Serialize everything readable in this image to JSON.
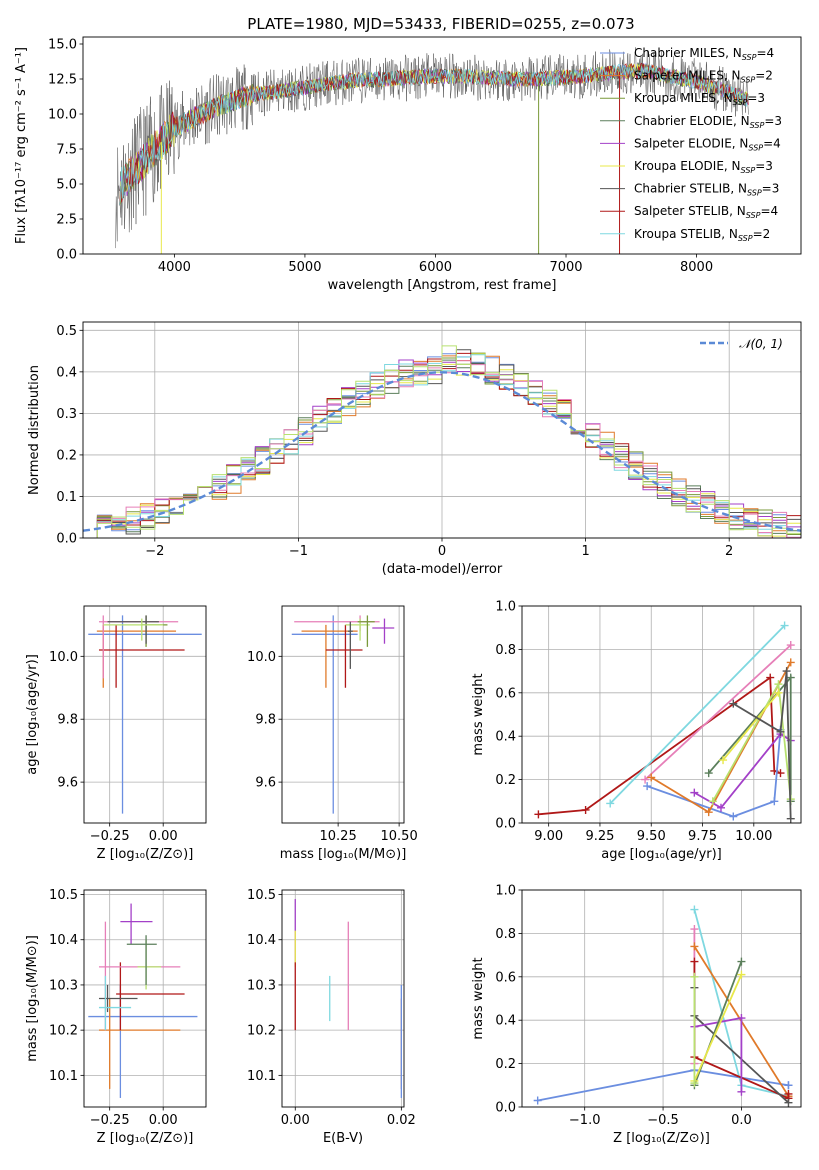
{
  "figure_title": "PLATE=1980, MJD=53433, FIBERID=0255, z=0.073",
  "colors": {
    "Chabrier MILES": "#6b8ee0",
    "Salpeter MILES": "#e07a2a",
    "Kroupa MILES": "#7a9a3a",
    "Chabrier ELODIE": "#5b7f5b",
    "Salpeter ELODIE": "#a340c8",
    "Kroupa ELODIE": "#e8e84a",
    "Chabrier STELIB": "#555555",
    "Salpeter STELIB": "#b01818",
    "Kroupa STELIB": "#7fd8e0",
    "pink": "#e67fb8",
    "lightgreen": "#b8e070"
  },
  "chart_data": [
    {
      "id": "spectrum",
      "type": "line",
      "xlabel": "wavelength [Angstrom, rest frame]",
      "ylabel": "Flux [fλ10⁻¹⁷ erg cm⁻² s⁻¹ A⁻¹]",
      "xlim": [
        3300,
        8800
      ],
      "ylim": [
        0,
        15.5
      ],
      "xticks": [
        "4000",
        "5000",
        "6000",
        "7000",
        "8000"
      ],
      "yticks": [
        "0.0",
        "2.5",
        "5.0",
        "7.5",
        "10.0",
        "12.5",
        "15.0"
      ],
      "legend": [
        {
          "label": "Chabrier MILES, N",
          "sub": "SSP",
          "suffix": "=4"
        },
        {
          "label": "Salpeter MILES, N",
          "sub": "SSP",
          "suffix": "=2"
        },
        {
          "label": "Kroupa MILES, N",
          "sub": "SSP",
          "suffix": "=3"
        },
        {
          "label": "Chabrier ELODIE, N",
          "sub": "SSP",
          "suffix": "=3"
        },
        {
          "label": "Salpeter ELODIE, N",
          "sub": "SSP",
          "suffix": "=4"
        },
        {
          "label": "Kroupa ELODIE, N",
          "sub": "SSP",
          "suffix": "=3"
        },
        {
          "label": "Chabrier STELIB, N",
          "sub": "SSP",
          "suffix": "=3"
        },
        {
          "label": "Salpeter STELIB, N",
          "sub": "SSP",
          "suffix": "=4"
        },
        {
          "label": "Kroupa STELIB, N",
          "sub": "SSP",
          "suffix": "=2"
        }
      ],
      "legend_placement": "right",
      "continuum": {
        "x": [
          3550,
          3700,
          3850,
          4000,
          4200,
          4400,
          4600,
          4800,
          5000,
          5200,
          5400,
          5600,
          5800,
          6000,
          6200,
          6400,
          6600,
          6800,
          7000,
          7200,
          7400,
          7600,
          7800,
          8000,
          8200,
          8400
        ],
        "y": [
          4.5,
          6.0,
          7.5,
          9.0,
          10.0,
          10.8,
          11.4,
          11.6,
          11.9,
          12.2,
          12.4,
          12.5,
          12.6,
          12.7,
          12.7,
          12.6,
          12.5,
          12.5,
          12.6,
          12.8,
          13.0,
          13.1,
          12.7,
          12.3,
          11.7,
          11.0
        ]
      },
      "dips": [
        {
          "x": 3900,
          "y": 0.0
        },
        {
          "x": 6790,
          "y": 0.0
        },
        {
          "x": 7410,
          "y": 0.0
        }
      ]
    },
    {
      "id": "residuals",
      "type": "line",
      "xlabel": "(data-model)/error",
      "ylabel": "Normed distribution",
      "xlim": [
        -2.5,
        2.5
      ],
      "ylim": [
        0,
        0.52
      ],
      "xticks": [
        "−2",
        "−1",
        "0",
        "1",
        "2"
      ],
      "yticks": [
        "0.0",
        "0.1",
        "0.2",
        "0.3",
        "0.4",
        "0.5"
      ],
      "legend": [
        {
          "label": "𝒩(0, 1)"
        }
      ],
      "legend_placement": "top-right",
      "bin_width": 0.1
    },
    {
      "id": "age-vs-Z",
      "type": "scatter",
      "xlabel": "Z [log₁₀(Z/Z⊙)]",
      "ylabel": "age  [log₁₀(age/yr)]",
      "xlim": [
        -0.37,
        0.2
      ],
      "ylim": [
        9.47,
        10.16
      ],
      "xticks": [
        "−0.25",
        "0.00"
      ],
      "yticks": [
        "9.6",
        "9.8",
        "10.0"
      ],
      "points": [
        {
          "c": "Chabrier MILES",
          "x": -0.19,
          "y": 10.07,
          "xe": [
            -0.35,
            0.18
          ],
          "ye": [
            9.5,
            10.13
          ]
        },
        {
          "c": "Salpeter MILES",
          "x": -0.28,
          "y": 10.08,
          "xe": [
            -0.31,
            0.06
          ],
          "ye": [
            9.9,
            10.1
          ]
        },
        {
          "c": "Kroupa MILES",
          "x": -0.08,
          "y": 10.1,
          "xe": [
            -0.1,
            0.02
          ],
          "ye": [
            10.03,
            10.13
          ]
        },
        {
          "c": "Salpeter STELIB",
          "x": -0.22,
          "y": 10.02,
          "xe": [
            -0.3,
            0.1
          ],
          "ye": [
            9.9,
            10.1
          ]
        },
        {
          "c": "pink",
          "x": -0.28,
          "y": 10.11,
          "xe": [
            -0.3,
            0.07
          ],
          "ye": [
            9.93,
            10.13
          ]
        },
        {
          "c": "Chabrier STELIB",
          "x": -0.08,
          "y": 10.11,
          "xe": [
            -0.26,
            -0.02
          ],
          "ye": [
            10.04,
            10.13
          ]
        },
        {
          "c": "lightgreen",
          "x": -0.1,
          "y": 10.1,
          "xe": [
            -0.28,
            0.0
          ],
          "ye": [
            10.05,
            10.12
          ]
        }
      ]
    },
    {
      "id": "age-vs-mass",
      "type": "scatter",
      "xlabel": "mass [log₁₀(M/M⊙)]",
      "ylabel": "",
      "xlim": [
        10.02,
        10.52
      ],
      "ylim": [
        9.47,
        10.16
      ],
      "xticks": [
        "10.25",
        "10.50"
      ],
      "yticks": [
        "9.6",
        "9.8",
        "10.0"
      ],
      "points": [
        {
          "c": "Chabrier MILES",
          "x": 10.23,
          "y": 10.07,
          "xe": [
            10.06,
            10.33
          ],
          "ye": [
            9.5,
            10.13
          ]
        },
        {
          "c": "Salpeter MILES",
          "x": 10.2,
          "y": 10.08,
          "xe": [
            10.1,
            10.33
          ],
          "ye": [
            9.9,
            10.1
          ]
        },
        {
          "c": "Salpeter STELIB",
          "x": 10.28,
          "y": 10.02,
          "xe": [
            10.2,
            10.35
          ],
          "ye": [
            9.9,
            10.1
          ]
        },
        {
          "c": "Salpeter ELODIE",
          "x": 10.44,
          "y": 10.09,
          "xe": [
            10.39,
            10.48
          ],
          "ye": [
            10.04,
            10.12
          ]
        },
        {
          "c": "pink",
          "x": 10.34,
          "y": 10.11,
          "xe": [
            10.07,
            10.42
          ],
          "ye": [
            10.08,
            10.13
          ]
        },
        {
          "c": "lightgreen",
          "x": 10.34,
          "y": 10.1,
          "xe": [
            10.28,
            10.38
          ],
          "ye": [
            10.05,
            10.12
          ]
        },
        {
          "c": "Chabrier STELIB",
          "x": 10.3,
          "y": 10.08,
          "xe": [
            10.29,
            10.31
          ],
          "ye": [
            9.96,
            10.11
          ]
        },
        {
          "c": "Kroupa MILES",
          "x": 10.37,
          "y": 10.11,
          "xe": [
            10.33,
            10.4
          ],
          "ye": [
            10.03,
            10.13
          ]
        }
      ]
    },
    {
      "id": "weight-vs-age",
      "type": "line",
      "xlabel": "age  [log₁₀(age/yr)]",
      "ylabel": "mass weight",
      "xlim": [
        8.87,
        10.23
      ],
      "ylim": [
        0,
        1.0
      ],
      "xticks": [
        "9.00",
        "9.25",
        "9.50",
        "9.75",
        "10.00"
      ],
      "yticks": [
        "0.0",
        "0.2",
        "0.4",
        "0.6",
        "0.8",
        "1.0"
      ],
      "series": [
        {
          "c": "Salpeter STELIB",
          "x": [
            8.95,
            9.18,
            10.08,
            10.1,
            10.13
          ],
          "y": [
            0.04,
            0.06,
            0.67,
            0.24,
            0.23
          ]
        },
        {
          "c": "Kroupa STELIB",
          "x": [
            9.3,
            10.15
          ],
          "y": [
            0.09,
            0.91
          ]
        },
        {
          "c": "pink",
          "x": [
            9.47,
            10.18
          ],
          "y": [
            0.2,
            0.82
          ]
        },
        {
          "c": "Chabrier MILES",
          "x": [
            9.48,
            9.9,
            10.1,
            10.13
          ],
          "y": [
            0.17,
            0.03,
            0.1,
            0.43
          ]
        },
        {
          "c": "Salpeter MILES",
          "x": [
            9.5,
            9.78,
            10.18
          ],
          "y": [
            0.21,
            0.05,
            0.74
          ]
        },
        {
          "c": "Salpeter ELODIE",
          "x": [
            9.71,
            9.84,
            10.13,
            10.18
          ],
          "y": [
            0.14,
            0.07,
            0.41,
            0.38
          ]
        },
        {
          "c": "Chabrier ELODIE",
          "x": [
            9.78,
            10.18,
            10.18
          ],
          "y": [
            0.23,
            0.67,
            0.1
          ]
        },
        {
          "c": "lightgreen",
          "x": [
            9.8,
            10.12,
            10.18
          ],
          "y": [
            0.1,
            0.64,
            0.11
          ]
        },
        {
          "c": "Kroupa ELODIE",
          "x": [
            9.85,
            10.12
          ],
          "y": [
            0.29,
            0.6
          ]
        },
        {
          "c": "Chabrier STELIB",
          "x": [
            9.9,
            10.13,
            10.16,
            10.18
          ],
          "y": [
            0.55,
            0.42,
            0.7,
            0.02
          ]
        }
      ]
    },
    {
      "id": "mass-vs-Z",
      "type": "scatter",
      "xlabel": "Z [log₁₀(Z/Z⊙)]",
      "ylabel": "mass [log₁₀(M/M⊙)]",
      "xlim": [
        -0.37,
        0.2
      ],
      "ylim": [
        10.03,
        10.51
      ],
      "xticks": [
        "−0.25",
        "0.00"
      ],
      "yticks": [
        "10.1",
        "10.2",
        "10.3",
        "10.4",
        "10.5"
      ],
      "points": [
        {
          "c": "Chabrier MILES",
          "x": -0.2,
          "y": 10.23,
          "xe": [
            -0.35,
            0.16
          ],
          "ye": [
            10.05,
            10.3
          ]
        },
        {
          "c": "Salpeter MILES",
          "x": -0.25,
          "y": 10.2,
          "xe": [
            -0.3,
            0.08
          ],
          "ye": [
            10.07,
            10.27
          ]
        },
        {
          "c": "Salpeter STELIB",
          "x": -0.2,
          "y": 10.28,
          "xe": [
            -0.22,
            0.1
          ],
          "ye": [
            10.2,
            10.35
          ]
        },
        {
          "c": "Salpeter ELODIE",
          "x": -0.15,
          "y": 10.44,
          "xe": [
            -0.2,
            -0.05
          ],
          "ye": [
            10.39,
            10.48
          ]
        },
        {
          "c": "pink",
          "x": -0.27,
          "y": 10.34,
          "xe": [
            -0.3,
            0.08
          ],
          "ye": [
            10.2,
            10.44
          ]
        },
        {
          "c": "lightgreen",
          "x": -0.08,
          "y": 10.34,
          "xe": [
            -0.12,
            -0.01
          ],
          "ye": [
            10.29,
            10.4
          ]
        },
        {
          "c": "Chabrier ELODIE",
          "x": -0.08,
          "y": 10.39,
          "xe": [
            -0.17,
            -0.03
          ],
          "ye": [
            10.3,
            10.41
          ]
        },
        {
          "c": "Chabrier STELIB",
          "x": -0.26,
          "y": 10.27,
          "xe": [
            -0.3,
            -0.12
          ],
          "ye": [
            10.24,
            10.3
          ]
        },
        {
          "c": "Kroupa STELIB",
          "x": -0.27,
          "y": 10.25,
          "xe": [
            -0.3,
            -0.15
          ],
          "ye": [
            10.2,
            10.32
          ]
        }
      ]
    },
    {
      "id": "mass-vs-EBV",
      "type": "scatter",
      "xlabel": "E(B-V)",
      "ylabel": "",
      "xlim": [
        -0.0025,
        0.0205
      ],
      "ylim": [
        10.03,
        10.51
      ],
      "xticks": [
        "0.00",
        "0.02"
      ],
      "yticks": [
        "10.1",
        "10.2",
        "10.3",
        "10.4",
        "10.5"
      ],
      "points": [
        {
          "c": "Salpeter ELODIE",
          "x": 0.0,
          "y": 10.42,
          "xe": [
            0.0,
            0.0
          ],
          "ye": [
            10.35,
            10.49
          ]
        },
        {
          "c": "Kroupa ELODIE",
          "x": 0.0,
          "y": 10.38,
          "xe": [
            0.0,
            0.0
          ],
          "ye": [
            10.34,
            10.42
          ]
        },
        {
          "c": "Salpeter STELIB",
          "x": 0.0,
          "y": 10.27,
          "xe": [
            0.0,
            0.0
          ],
          "ye": [
            10.2,
            10.35
          ]
        },
        {
          "c": "Kroupa STELIB",
          "x": 0.0065,
          "y": 10.27,
          "xe": [
            0.0065,
            0.0065
          ],
          "ye": [
            10.22,
            10.32
          ]
        },
        {
          "c": "pink",
          "x": 0.01,
          "y": 10.32,
          "xe": [
            0.01,
            0.01
          ],
          "ye": [
            10.2,
            10.44
          ]
        },
        {
          "c": "Salpeter MILES",
          "x": 0.02,
          "y": 10.2,
          "xe": [
            0.02,
            0.02
          ],
          "ye": [
            10.07,
            10.27
          ]
        },
        {
          "c": "Chabrier MILES",
          "x": 0.02,
          "y": 10.23,
          "xe": [
            0.02,
            0.02
          ],
          "ye": [
            10.05,
            10.3
          ]
        }
      ]
    },
    {
      "id": "weight-vs-Z",
      "type": "line",
      "xlabel": "Z [log₁₀(Z/Z⊙)]",
      "ylabel": "mass weight",
      "xlim": [
        -1.4,
        0.38
      ],
      "ylim": [
        0,
        1.0
      ],
      "xticks": [
        "−1.0",
        "−0.5",
        "0.0"
      ],
      "yticks": [
        "0.0",
        "0.2",
        "0.4",
        "0.6",
        "0.8",
        "1.0"
      ],
      "series": [
        {
          "c": "Chabrier MILES",
          "x": [
            -1.3,
            -0.3,
            0.3,
            0.3
          ],
          "y": [
            0.03,
            0.17,
            0.1,
            0.1
          ]
        },
        {
          "c": "Kroupa STELIB",
          "x": [
            -0.3,
            0.0,
            0.3
          ],
          "y": [
            0.91,
            0.1,
            0.05
          ]
        },
        {
          "c": "pink",
          "x": [
            -0.3,
            -0.3
          ],
          "y": [
            0.82,
            0.2
          ]
        },
        {
          "c": "Salpeter MILES",
          "x": [
            -0.3,
            0.3,
            0.3
          ],
          "y": [
            0.74,
            0.05,
            0.05
          ]
        },
        {
          "c": "Salpeter STELIB",
          "x": [
            -0.3,
            -0.3,
            0.3,
            0.3
          ],
          "y": [
            0.67,
            0.23,
            0.04,
            0.06
          ]
        },
        {
          "c": "Chabrier STELIB",
          "x": [
            -0.3,
            -0.3,
            0.3
          ],
          "y": [
            0.55,
            0.42,
            0.02
          ]
        },
        {
          "c": "Salpeter ELODIE",
          "x": [
            -0.3,
            0.0,
            0.0
          ],
          "y": [
            0.37,
            0.41,
            0.07
          ]
        },
        {
          "c": "Chabrier ELODIE",
          "x": [
            -0.3,
            0.0
          ],
          "y": [
            0.1,
            0.67
          ]
        },
        {
          "c": "Kroupa ELODIE",
          "x": [
            -0.3,
            0.0
          ],
          "y": [
            0.12,
            0.61
          ]
        },
        {
          "c": "lightgreen",
          "x": [
            -0.3,
            -0.3
          ],
          "y": [
            0.6,
            0.11
          ]
        }
      ]
    }
  ]
}
